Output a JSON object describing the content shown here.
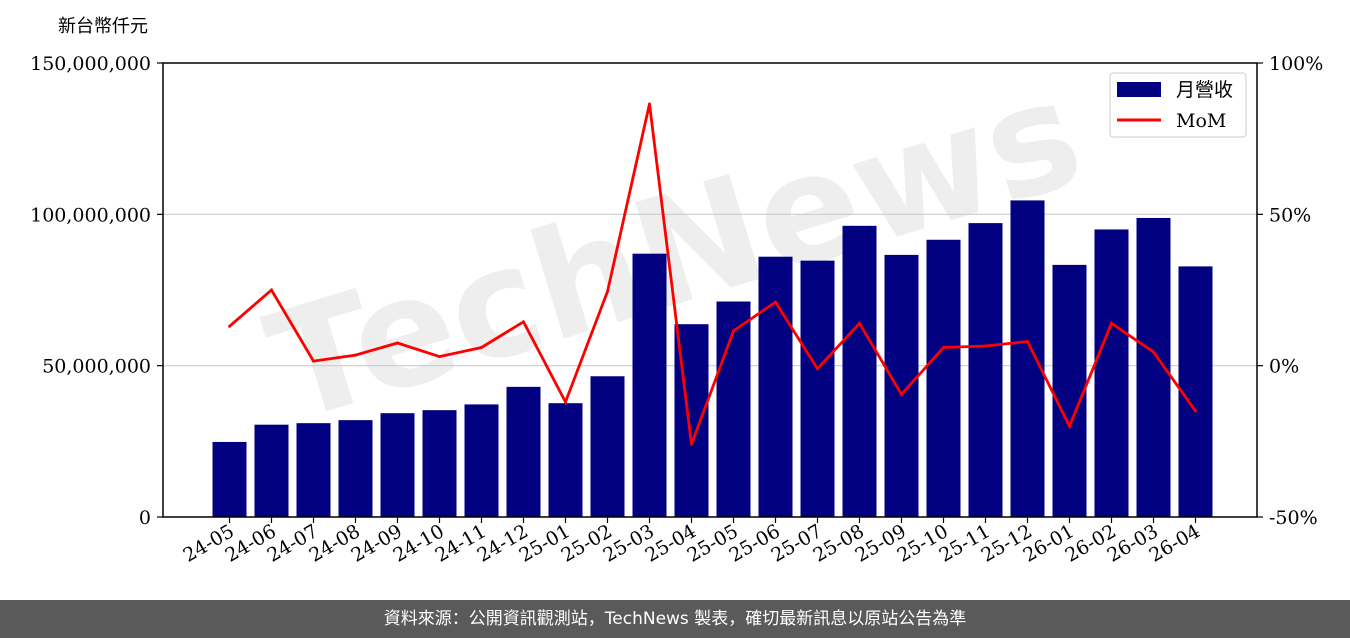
{
  "chart_data": {
    "type": "bar",
    "ylabel": "新台幣仟元",
    "categories": [
      "24-05",
      "24-06",
      "24-07",
      "24-08",
      "24-09",
      "24-10",
      "24-11",
      "24-12",
      "25-01",
      "25-02",
      "25-03",
      "25-04",
      "25-05",
      "25-06",
      "25-07",
      "25-08",
      "25-09",
      "25-10",
      "25-11",
      "25-12",
      "26-01",
      "26-02",
      "26-03",
      "26-04"
    ],
    "series": [
      {
        "name": "月營收",
        "type": "bar",
        "axis": "left",
        "color": "#000080",
        "values": [
          24800000,
          30500000,
          31000000,
          32000000,
          34300000,
          35300000,
          37200000,
          43000000,
          37600000,
          46500000,
          87000000,
          63700000,
          71200000,
          86000000,
          84700000,
          96200000,
          86600000,
          91600000,
          97100000,
          104600000,
          83300000,
          95000000,
          98800000,
          82800000
        ]
      },
      {
        "name": "MoM",
        "type": "line",
        "axis": "right",
        "color": "#ff0000",
        "values": [
          13,
          25,
          1.5,
          3.5,
          7.5,
          3,
          6,
          14.5,
          -12,
          24.5,
          86.5,
          -26,
          11.5,
          21,
          -1,
          14,
          -9.5,
          6,
          6.5,
          8,
          -20,
          14,
          4.5,
          -15
        ]
      }
    ],
    "ylim_left": [
      0,
      150000000
    ],
    "yticks_left": [
      "0",
      "50,000,000",
      "100,000,000",
      "150,000,000"
    ],
    "ylim_right": [
      -50,
      100
    ],
    "yticks_right": [
      "-50%",
      "0%",
      "50%",
      "100%"
    ],
    "grid": "horizontal",
    "legend": "top-right"
  },
  "footer": {
    "source": "資料來源：公開資訊觀測站，TechNews 製表，確切最新訊息以原站公告為準"
  },
  "watermark": "TechNews"
}
